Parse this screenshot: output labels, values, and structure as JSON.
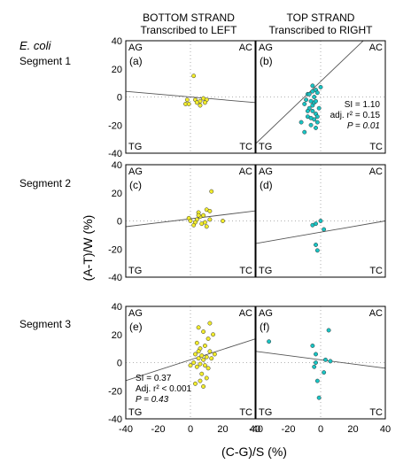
{
  "colors": {
    "yellow": "#f2ec2c",
    "cyan": "#19c4c4",
    "axis": "#000000",
    "fit": "#555555",
    "zero": "#999999"
  },
  "headers": {
    "bottom_title": "BOTTOM STRAND",
    "bottom_sub": "Transcribed to LEFT",
    "top_title": "TOP STRAND",
    "top_sub": "Transcribed to RIGHT"
  },
  "organism": "E. coli",
  "segments": [
    "Segment 1",
    "Segment 2",
    "Segment 3"
  ],
  "ylabel": "(A-T)/W (%)",
  "xlabel": "(C-G)/S (%)",
  "corners": {
    "tl": "AG",
    "tr": "AC",
    "bl": "TG",
    "br": "TC"
  },
  "ticks": {
    "y": [
      "40",
      "20",
      "0",
      "-20",
      "-40"
    ],
    "x": [
      "-40",
      "-20",
      "0",
      "20",
      "40"
    ]
  },
  "chart_data": [
    {
      "type": "scatter",
      "panel": "(a)",
      "color": "yellow",
      "xlim": [
        -40,
        40
      ],
      "ylim": [
        -40,
        40
      ],
      "points": [
        [
          2,
          15
        ],
        [
          -2,
          -2
        ],
        [
          3,
          -2
        ],
        [
          6,
          -3
        ],
        [
          8,
          -1
        ],
        [
          10,
          -2
        ],
        [
          -3,
          -5
        ],
        [
          -1,
          -5
        ],
        [
          6,
          -6
        ],
        [
          9,
          -4
        ],
        [
          4,
          -4
        ]
      ],
      "fit": {
        "intercept": 0,
        "slope": -0.1
      },
      "annotation": []
    },
    {
      "type": "scatter",
      "panel": "(b)",
      "color": "cyan",
      "xlim": [
        -40,
        40
      ],
      "ylim": [
        -40,
        40
      ],
      "points": [
        [
          -5,
          8
        ],
        [
          -3,
          5
        ],
        [
          -5,
          4
        ],
        [
          0,
          7
        ],
        [
          -8,
          2
        ],
        [
          -4,
          0
        ],
        [
          -6,
          -3
        ],
        [
          -2,
          3
        ],
        [
          -10,
          -5
        ],
        [
          -7,
          -8
        ],
        [
          -5,
          -10
        ],
        [
          -3,
          -12
        ],
        [
          -8,
          -14
        ],
        [
          -4,
          -16
        ],
        [
          -2,
          -18
        ],
        [
          -6,
          -20
        ],
        [
          -10,
          -25
        ],
        [
          -3,
          -22
        ],
        [
          -12,
          -18
        ],
        [
          -5,
          -6
        ],
        [
          -1,
          -8
        ],
        [
          -8,
          -10
        ],
        [
          -4,
          -4
        ],
        [
          -7,
          2
        ],
        [
          -2,
          -14
        ],
        [
          -6,
          -15
        ],
        [
          -3,
          -3
        ],
        [
          -9,
          -2
        ]
      ],
      "fit": {
        "intercept": 11,
        "slope": 1.1
      },
      "annotation": [
        "SI = 1.10",
        "adj. r² = 0.15",
        "P = 0.01"
      ]
    },
    {
      "type": "scatter",
      "panel": "(c)",
      "color": "yellow",
      "xlim": [
        -40,
        40
      ],
      "ylim": [
        -40,
        40
      ],
      "points": [
        [
          13,
          21
        ],
        [
          10,
          8
        ],
        [
          12,
          7
        ],
        [
          5,
          6
        ],
        [
          -1,
          2
        ],
        [
          0,
          0
        ],
        [
          4,
          1
        ],
        [
          6,
          3
        ],
        [
          8,
          4
        ],
        [
          3,
          -1
        ],
        [
          7,
          -2
        ],
        [
          9,
          -1
        ],
        [
          12,
          1
        ],
        [
          2,
          -3
        ],
        [
          10,
          -4
        ],
        [
          20,
          0
        ],
        [
          5,
          4
        ]
      ],
      "fit": {
        "intercept": 1.5,
        "slope": 0.14
      },
      "annotation": []
    },
    {
      "type": "scatter",
      "panel": "(d)",
      "color": "cyan",
      "xlim": [
        -40,
        40
      ],
      "ylim": [
        -40,
        40
      ],
      "points": [
        [
          -5,
          -3
        ],
        [
          -3,
          -2
        ],
        [
          0,
          0
        ],
        [
          2,
          -6
        ],
        [
          -3,
          -17
        ],
        [
          -2,
          -21
        ]
      ],
      "fit": {
        "intercept": -8,
        "slope": 0.2
      },
      "annotation": []
    },
    {
      "type": "scatter",
      "panel": "(e)",
      "color": "yellow",
      "xlim": [
        -40,
        40
      ],
      "ylim": [
        -40,
        40
      ],
      "points": [
        [
          12,
          28
        ],
        [
          5,
          25
        ],
        [
          8,
          22
        ],
        [
          14,
          20
        ],
        [
          11,
          17
        ],
        [
          4,
          14
        ],
        [
          9,
          12
        ],
        [
          6,
          10
        ],
        [
          12,
          8
        ],
        [
          3,
          6
        ],
        [
          7,
          5
        ],
        [
          10,
          4
        ],
        [
          5,
          3
        ],
        [
          8,
          2
        ],
        [
          13,
          3
        ],
        [
          2,
          0
        ],
        [
          6,
          -1
        ],
        [
          9,
          -2
        ],
        [
          4,
          -3
        ],
        [
          11,
          -4
        ],
        [
          7,
          -8
        ],
        [
          10,
          -11
        ],
        [
          6,
          -13
        ],
        [
          3,
          -15
        ],
        [
          8,
          -17
        ],
        [
          15,
          6
        ],
        [
          0,
          -2
        ],
        [
          5,
          8
        ]
      ],
      "fit": {
        "intercept": 2,
        "slope": 0.37
      },
      "annotation": [
        "SI = 0.37",
        "Adj. r² < 0.001",
        "P = 0.43"
      ]
    },
    {
      "type": "scatter",
      "panel": "(f)",
      "color": "cyan",
      "xlim": [
        -40,
        40
      ],
      "ylim": [
        -40,
        40
      ],
      "points": [
        [
          -32,
          15
        ],
        [
          -5,
          12
        ],
        [
          5,
          23
        ],
        [
          -3,
          6
        ],
        [
          3,
          2
        ],
        [
          6,
          1
        ],
        [
          -4,
          -3
        ],
        [
          2,
          -7
        ],
        [
          -2,
          -13
        ],
        [
          -1,
          -25
        ],
        [
          -3,
          0
        ]
      ],
      "fit": {
        "intercept": 2,
        "slope": -0.15
      },
      "annotation": []
    }
  ]
}
